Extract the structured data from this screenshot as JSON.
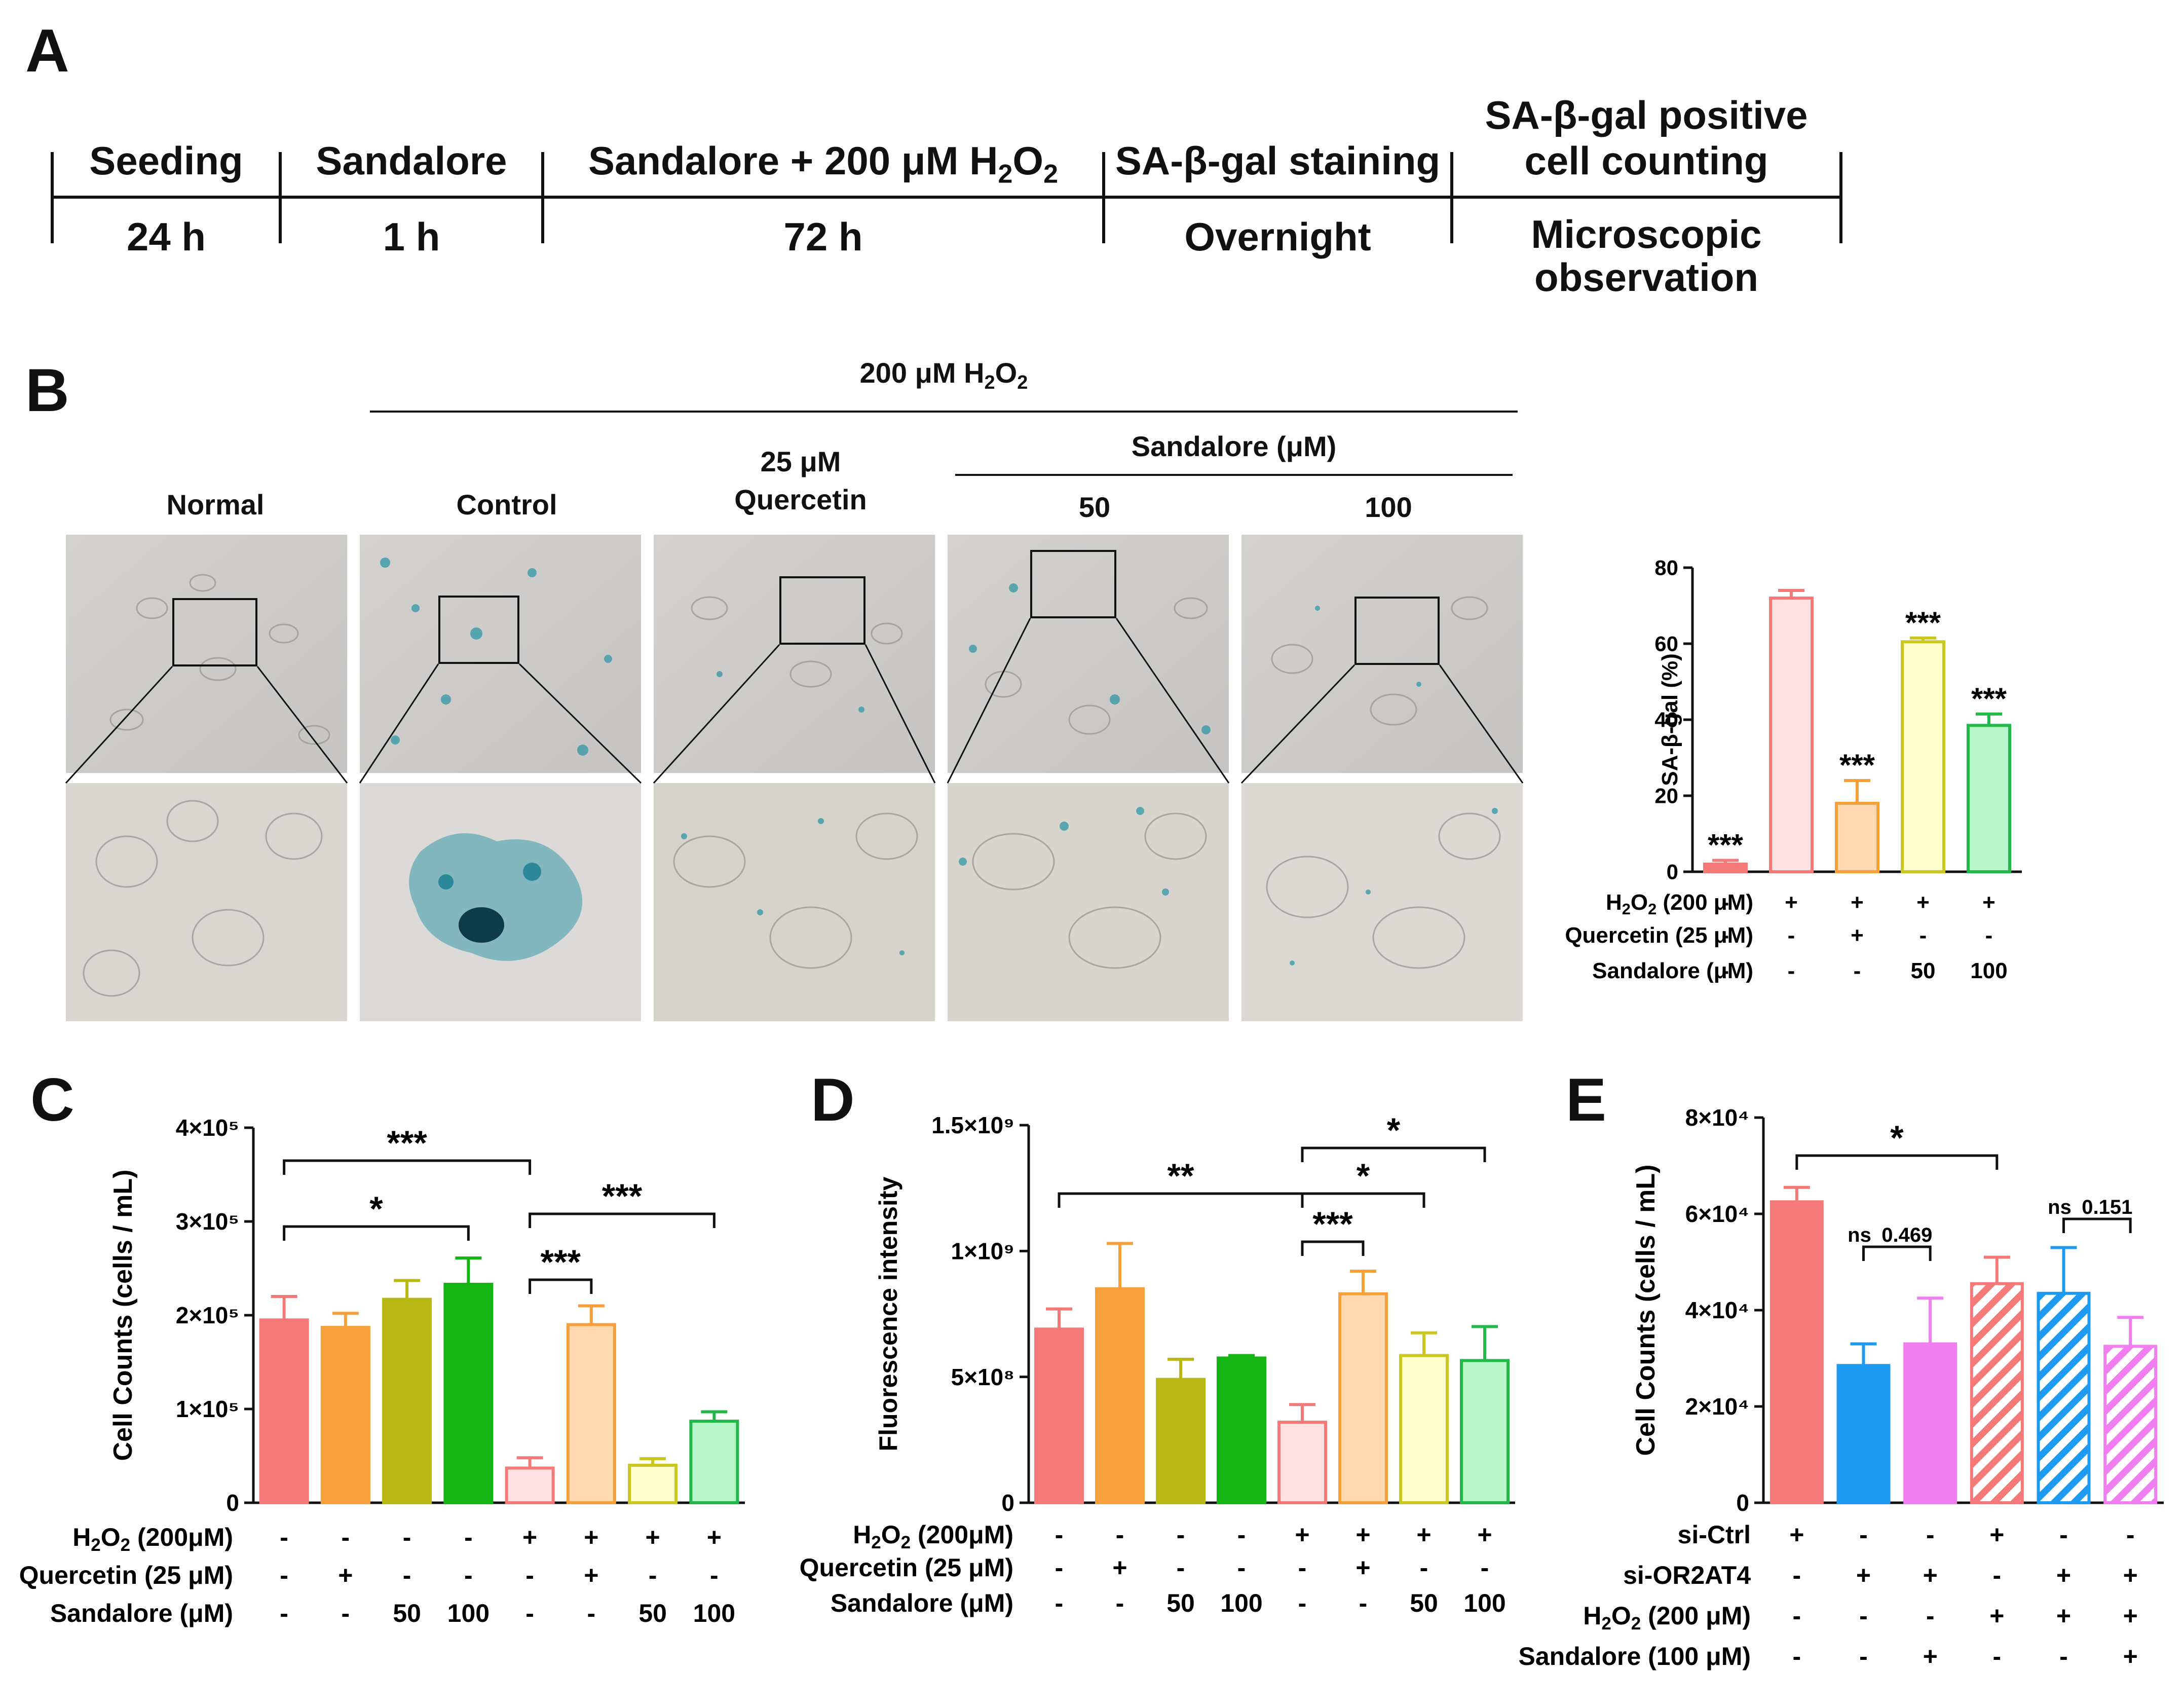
{
  "panel_labels": {
    "A": "A",
    "B": "B",
    "C": "C",
    "D": "D",
    "E": "E"
  },
  "timeline": {
    "steps": [
      {
        "label": "Seeding",
        "duration": "24 h"
      },
      {
        "label": "Sandalore",
        "duration": "1 h"
      },
      {
        "label_main": "Sandalore + 200 μM H",
        "label_sub": "2",
        "label_tail": "O",
        "label_sub2": "2",
        "duration": "72 h"
      },
      {
        "label": "SA-β-gal staining",
        "duration": "Overnight"
      },
      {
        "label_line1": "SA-β-gal positive",
        "label_line2": "cell counting",
        "duration_line1": "Microscopic",
        "duration_line2": "observation"
      }
    ]
  },
  "micrographs": {
    "top_header": {
      "main": "200 μM H",
      "sub": "2",
      "tail": "O",
      "sub2": "2"
    },
    "sandalore_header": "Sandalore (μM)",
    "columns": [
      {
        "label": "Normal",
        "stain": "low"
      },
      {
        "label": "Control",
        "stain": "high"
      },
      {
        "label_line1": "25 μM",
        "label_line2": "Quercetin",
        "stain": "low"
      },
      {
        "label": "50",
        "stain": "medium"
      },
      {
        "label": "100",
        "stain": "low"
      }
    ]
  },
  "chart_data": [
    {
      "id": "B",
      "type": "bar",
      "ylabel": "SA-β-gal (%)",
      "ylim": [
        0,
        80
      ],
      "yticks": [
        "0",
        "20",
        "40",
        "60",
        "80"
      ],
      "values": [
        2,
        72,
        18,
        60.5,
        38.5
      ],
      "errors": [
        1,
        2,
        6,
        1,
        3
      ],
      "colors": [
        "#f47a7a",
        "#f47a7a",
        "#f5a03a",
        "#c8c820",
        "#22b84a"
      ],
      "fills": [
        "#f47a7a",
        "#ffe0e3",
        "#ffd9b0",
        "#ffffcc",
        "#b6f5c8"
      ],
      "annotations": [
        "***",
        "",
        "***",
        "***",
        "***"
      ],
      "condition_rows": [
        {
          "name_main": "H",
          "name_sub": "2",
          "name_tail": "O",
          "name_sub2": "2",
          "name_rest": " (200 μM)",
          "marks": [
            "-",
            "+",
            "+",
            "+",
            "+"
          ]
        },
        {
          "name": "Quercetin (25 μM)",
          "marks": [
            "-",
            "-",
            "+",
            "-",
            "-"
          ]
        },
        {
          "name": "Sandalore (μM)",
          "marks": [
            "-",
            "-",
            "-",
            "50",
            "100"
          ]
        }
      ]
    },
    {
      "id": "C",
      "type": "bar",
      "ylabel": "Cell Counts (cells / mL)",
      "ylim": [
        0,
        400000
      ],
      "yticks": [
        "0",
        "1×10⁵",
        "2×10⁵",
        "3×10⁵",
        "4×10⁵"
      ],
      "values": [
        195000,
        187000,
        217000,
        233000,
        37000,
        190000,
        40000,
        87000
      ],
      "errors": [
        25000,
        15000,
        20000,
        28000,
        11000,
        20000,
        7000,
        10000
      ],
      "colors": [
        "#f47a7a",
        "#f5a03a",
        "#b8b814",
        "#14b414",
        "#f47a7a",
        "#f5a03a",
        "#c8c820",
        "#22b84a"
      ],
      "fills": [
        "#f47a7a",
        "#f5a03a",
        "#b8b814",
        "#14b414",
        "#ffe0e3",
        "#ffd9b0",
        "#ffffcc",
        "#b6f5c8"
      ],
      "brackets": [
        {
          "from": 0,
          "to": 4,
          "label": "***"
        },
        {
          "from": 0,
          "to": 3,
          "label": "*"
        },
        {
          "from": 4,
          "to": 7,
          "label": "***"
        },
        {
          "from": 4,
          "to": 5,
          "label": "***"
        }
      ],
      "condition_rows": [
        {
          "name_main": "H",
          "name_sub": "2",
          "name_tail": "O",
          "name_sub2": "2",
          "name_rest": " (200μM)",
          "marks": [
            "-",
            "-",
            "-",
            "-",
            "+",
            "+",
            "+",
            "+"
          ]
        },
        {
          "name": "Quercetin (25 μM)",
          "marks": [
            "-",
            "+",
            "-",
            "-",
            "-",
            "+",
            "-",
            "-"
          ]
        },
        {
          "name": "Sandalore (μM)",
          "marks": [
            "-",
            "-",
            "50",
            "100",
            "-",
            "-",
            "50",
            "100"
          ]
        }
      ]
    },
    {
      "id": "D",
      "type": "bar",
      "ylabel": "Fluorescence intensity",
      "ylim": [
        0,
        1500000000
      ],
      "yticks": [
        "0",
        "5×10⁸",
        "1×10⁹",
        "1.5×10⁹"
      ],
      "values": [
        690000000,
        850000000,
        490000000,
        575000000,
        320000000,
        830000000,
        585000000,
        565000000
      ],
      "errors": [
        80000000,
        180000000,
        80000000,
        10000000,
        70000000,
        90000000,
        90000000,
        135000000
      ],
      "colors": [
        "#f47a7a",
        "#f5a03a",
        "#b8b814",
        "#14b414",
        "#f47a7a",
        "#f5a03a",
        "#c8c820",
        "#22b84a"
      ],
      "fills": [
        "#f47a7a",
        "#f5a03a",
        "#b8b814",
        "#14b414",
        "#ffe0e3",
        "#ffd9b0",
        "#ffffcc",
        "#b6f5c8"
      ],
      "brackets": [
        {
          "from": 4,
          "to": 7,
          "label": "*"
        },
        {
          "from": 0,
          "to": 4,
          "label": "**"
        },
        {
          "from": 4,
          "to": 6,
          "label": "*"
        },
        {
          "from": 4,
          "to": 5,
          "label": "***"
        }
      ],
      "condition_rows": [
        {
          "name_main": "H",
          "name_sub": "2",
          "name_tail": "O",
          "name_sub2": "2",
          "name_rest": " (200μM)",
          "marks": [
            "-",
            "-",
            "-",
            "-",
            "+",
            "+",
            "+",
            "+"
          ]
        },
        {
          "name": "Quercetin (25 μM)",
          "marks": [
            "-",
            "+",
            "-",
            "-",
            "-",
            "+",
            "-",
            "-"
          ]
        },
        {
          "name": "Sandalore (μM)",
          "marks": [
            "-",
            "-",
            "50",
            "100",
            "-",
            "-",
            "50",
            "100"
          ]
        }
      ]
    },
    {
      "id": "E",
      "type": "bar",
      "ylabel": "Cell Counts (cells / mL)",
      "ylim": [
        0,
        80000
      ],
      "yticks": [
        "0",
        "2×10⁴",
        "4×10⁴",
        "6×10⁴",
        "8×10⁴"
      ],
      "values": [
        62500,
        28500,
        33000,
        45500,
        43500,
        32500
      ],
      "errors": [
        3000,
        4500,
        9500,
        5500,
        9500,
        6000
      ],
      "colors": [
        "#f47a7a",
        "#1e9af0",
        "#f07ef0",
        "#f47a7a",
        "#1e9af0",
        "#f07ef0"
      ],
      "fills": [
        "#f47a7a",
        "#1e9af0",
        "#f07ef0",
        "#f47a7a",
        "#1e9af0",
        "#f07ef0"
      ],
      "hatched": [
        false,
        false,
        false,
        true,
        true,
        true
      ],
      "brackets": [
        {
          "from": 0,
          "to": 3,
          "label": "*"
        },
        {
          "from": 1,
          "to": 2,
          "label": "ns",
          "pvalue": "0.469"
        },
        {
          "from": 4,
          "to": 5,
          "label": "ns",
          "pvalue": "0.151"
        }
      ],
      "condition_rows": [
        {
          "name": "si-Ctrl",
          "marks": [
            "+",
            "-",
            "-",
            "+",
            "-",
            "-"
          ]
        },
        {
          "name": "si-OR2AT4",
          "marks": [
            "-",
            "+",
            "+",
            "-",
            "+",
            "+"
          ]
        },
        {
          "name_main": "H",
          "name_sub": "2",
          "name_tail": "O",
          "name_sub2": "2",
          "name_rest": " (200 μM)",
          "marks": [
            "-",
            "-",
            "-",
            "+",
            "+",
            "+"
          ]
        },
        {
          "name": "Sandalore (100 μM)",
          "marks": [
            "-",
            "-",
            "+",
            "-",
            "-",
            "+"
          ]
        }
      ]
    }
  ]
}
